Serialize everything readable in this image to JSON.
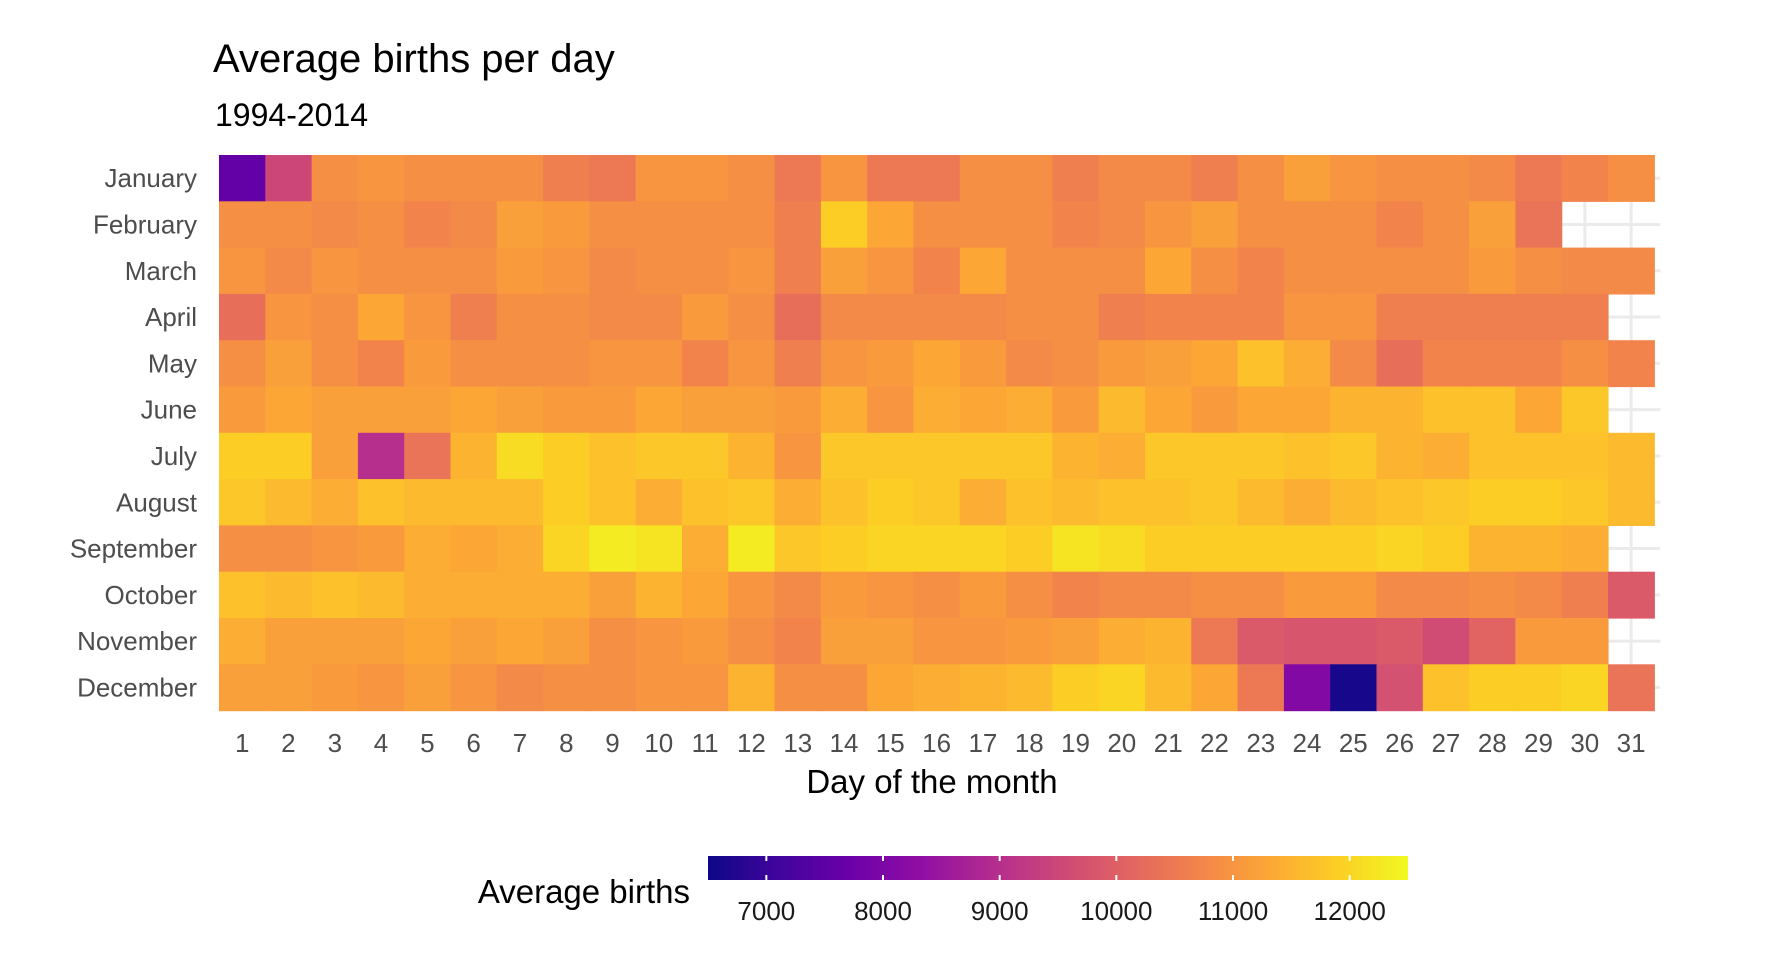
{
  "chart_data": {
    "type": "heatmap",
    "title": "Average births per day",
    "subtitle": "1994-2014",
    "xlabel": "Day of the month",
    "ylabel": "",
    "x": [
      1,
      2,
      3,
      4,
      5,
      6,
      7,
      8,
      9,
      10,
      11,
      12,
      13,
      14,
      15,
      16,
      17,
      18,
      19,
      20,
      21,
      22,
      23,
      24,
      25,
      26,
      27,
      28,
      29,
      30,
      31
    ],
    "y": [
      "January",
      "February",
      "March",
      "April",
      "May",
      "June",
      "July",
      "August",
      "September",
      "October",
      "November",
      "December"
    ],
    "values": [
      [
        7600,
        9500,
        10900,
        11000,
        10900,
        10900,
        10900,
        10600,
        10500,
        11000,
        11000,
        10900,
        10500,
        11000,
        10500,
        10500,
        10900,
        10900,
        10600,
        10800,
        10800,
        10600,
        10900,
        11200,
        11000,
        10900,
        10900,
        10800,
        10500,
        10700,
        10900
      ],
      [
        10900,
        10900,
        10800,
        10900,
        10700,
        10800,
        11200,
        11100,
        10900,
        10900,
        10900,
        10900,
        10600,
        11900,
        11300,
        10900,
        10900,
        10900,
        10700,
        10800,
        11000,
        11200,
        10900,
        10900,
        10900,
        10700,
        10900,
        11200,
        10400,
        null,
        null
      ],
      [
        11000,
        10800,
        11000,
        10900,
        10900,
        10900,
        11100,
        11000,
        10800,
        10900,
        10900,
        11000,
        10600,
        11200,
        11000,
        10700,
        11300,
        10900,
        10900,
        10900,
        11300,
        10900,
        10700,
        10900,
        10900,
        10900,
        10900,
        11100,
        10900,
        10800,
        10800
      ],
      [
        10300,
        11000,
        10900,
        11300,
        11000,
        10600,
        10900,
        10900,
        10800,
        10800,
        11100,
        10900,
        10300,
        10800,
        10800,
        10800,
        10800,
        10900,
        10900,
        10600,
        10700,
        10700,
        10700,
        11000,
        11000,
        10600,
        10600,
        10600,
        10600,
        10600,
        null
      ],
      [
        10900,
        11200,
        10900,
        10700,
        11100,
        10900,
        10900,
        10900,
        11000,
        11000,
        10700,
        11000,
        10600,
        11000,
        11100,
        11300,
        11100,
        10800,
        10900,
        11100,
        11200,
        11300,
        11700,
        11400,
        10800,
        10300,
        10700,
        10700,
        10700,
        10900,
        10700
      ],
      [
        11100,
        11300,
        11200,
        11200,
        11200,
        11300,
        11200,
        11100,
        11100,
        11300,
        11200,
        11200,
        11100,
        11400,
        11000,
        11400,
        11300,
        11400,
        11100,
        11600,
        11300,
        11100,
        11300,
        11300,
        11500,
        11500,
        11700,
        11700,
        11300,
        11800,
        null
      ],
      [
        11900,
        11900,
        11200,
        9000,
        10400,
        11500,
        12100,
        11900,
        11700,
        11800,
        11800,
        11500,
        11000,
        11800,
        11800,
        11800,
        11800,
        11800,
        11500,
        11400,
        11800,
        11800,
        11800,
        11700,
        11800,
        11500,
        11400,
        11700,
        11700,
        11700,
        11600
      ],
      [
        11800,
        11600,
        11400,
        11700,
        11600,
        11600,
        11600,
        11900,
        11700,
        11400,
        11700,
        11800,
        11400,
        11700,
        11900,
        11800,
        11400,
        11700,
        11600,
        11700,
        11700,
        11800,
        11600,
        11400,
        11600,
        11700,
        11800,
        11900,
        11900,
        11800,
        11600
      ],
      [
        10900,
        10900,
        11000,
        11100,
        11400,
        11300,
        11400,
        12000,
        12300,
        12200,
        11400,
        12300,
        11800,
        11900,
        12000,
        12000,
        12000,
        11900,
        12200,
        12100,
        11900,
        11900,
        11900,
        11900,
        11900,
        12000,
        11900,
        11500,
        11500,
        11400,
        null
      ],
      [
        11700,
        11600,
        11700,
        11600,
        11400,
        11400,
        11400,
        11400,
        11200,
        11500,
        11300,
        11000,
        10800,
        11100,
        11000,
        10900,
        11100,
        10900,
        10700,
        10800,
        10800,
        10900,
        10900,
        11100,
        11100,
        10800,
        10800,
        10900,
        10800,
        10600,
        9900
      ],
      [
        11400,
        11200,
        11200,
        11200,
        11300,
        11200,
        11300,
        11200,
        10900,
        11000,
        11100,
        10900,
        10700,
        11200,
        11200,
        11000,
        11000,
        11100,
        11200,
        11400,
        11500,
        10500,
        9900,
        9800,
        9800,
        9900,
        9600,
        10100,
        11100,
        11100,
        null
      ],
      [
        11200,
        11200,
        11100,
        11000,
        11200,
        11000,
        10800,
        10900,
        10900,
        11000,
        11000,
        11500,
        10900,
        10900,
        11300,
        11400,
        11500,
        11600,
        11900,
        12000,
        11600,
        11300,
        10500,
        8100,
        6600,
        9700,
        11700,
        11900,
        11900,
        12000,
        10400
      ]
    ],
    "colorbar": {
      "title": "Average births",
      "range": [
        6500,
        12500
      ],
      "ticks": [
        7000,
        8000,
        9000,
        10000,
        11000,
        12000
      ],
      "palette": "plasma"
    },
    "legend_position": "bottom",
    "grid": true
  }
}
